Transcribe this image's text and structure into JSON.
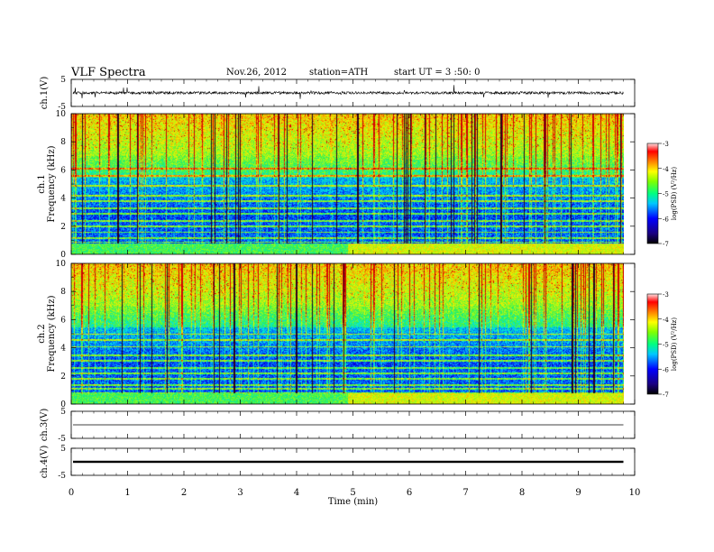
{
  "header": {
    "title": "VLF  Spectra",
    "date": "Nov.26, 2012",
    "station": "station=ATH",
    "start": "start  UT  =   3  :50: 0"
  },
  "colors": {
    "colormap": [
      "#00008c",
      "#0000ff",
      "#00a0ff",
      "#00ffd0",
      "#30ff30",
      "#d0ff00",
      "#ffc000",
      "#ff4000",
      "#cc0000"
    ],
    "trace": "#000000"
  },
  "chart_data": [
    {
      "type": "line",
      "name": "ch1-waveform",
      "ylabel": "ch.1(V)",
      "ylim": [
        -5,
        5
      ],
      "yticks": [
        "5",
        "-5"
      ],
      "baseline": 0,
      "typical_amplitude": 0.8,
      "spike_amplitude": 2.5
    },
    {
      "type": "heatmap",
      "name": "ch1-spectrogram",
      "ylabel": [
        "ch.1",
        "Frequency  (kHz)"
      ],
      "ylim": [
        0,
        10
      ],
      "yticks": [
        "0",
        "2",
        "4",
        "6",
        "8",
        "10"
      ],
      "colorbar": {
        "label": "log(PSD) (V²/Hz)",
        "range": [
          -7,
          -3
        ],
        "ticks": [
          "-3",
          "-4",
          "-5",
          "-6",
          "-7"
        ]
      },
      "persistent_lines_khz": [
        0.3,
        0.55,
        0.9,
        1.2,
        1.6,
        2.0,
        2.4,
        2.9,
        3.3,
        3.8,
        4.2,
        4.9,
        5.6,
        6.1
      ]
    },
    {
      "type": "heatmap",
      "name": "ch2-spectrogram",
      "ylabel": [
        "ch.2",
        "Frequency  (kHz)"
      ],
      "ylim": [
        0,
        10
      ],
      "yticks": [
        "0",
        "2",
        "4",
        "6",
        "8",
        "10"
      ],
      "colorbar": {
        "label": "log(PSD) (V²/Hz)",
        "range": [
          -7,
          -3
        ],
        "ticks": [
          "-3",
          "-4",
          "-5",
          "-6",
          "-7"
        ]
      },
      "persistent_lines_khz": [
        0.3,
        0.55,
        0.8,
        1.1,
        1.4,
        1.8,
        2.2,
        2.6,
        3.1,
        3.5,
        4.1,
        4.6,
        5.0
      ]
    },
    {
      "type": "line",
      "name": "ch3-waveform",
      "ylabel": "ch.3(V)",
      "ylim": [
        -5,
        5
      ],
      "yticks": [
        "5",
        "-5"
      ],
      "baseline": 0,
      "typical_amplitude": 0.05
    },
    {
      "type": "line",
      "name": "ch4-waveform",
      "ylabel": "ch.4(V)",
      "ylim": [
        -5,
        5
      ],
      "yticks": [
        "5",
        "-5"
      ],
      "baseline": 0,
      "typical_amplitude": 0.4
    }
  ],
  "xaxis": {
    "label": "Time  (min)",
    "range": [
      0,
      10
    ],
    "data_end": 9.8,
    "ticks": [
      "0",
      "1",
      "2",
      "3",
      "4",
      "5",
      "6",
      "7",
      "8",
      "9",
      "10"
    ]
  }
}
